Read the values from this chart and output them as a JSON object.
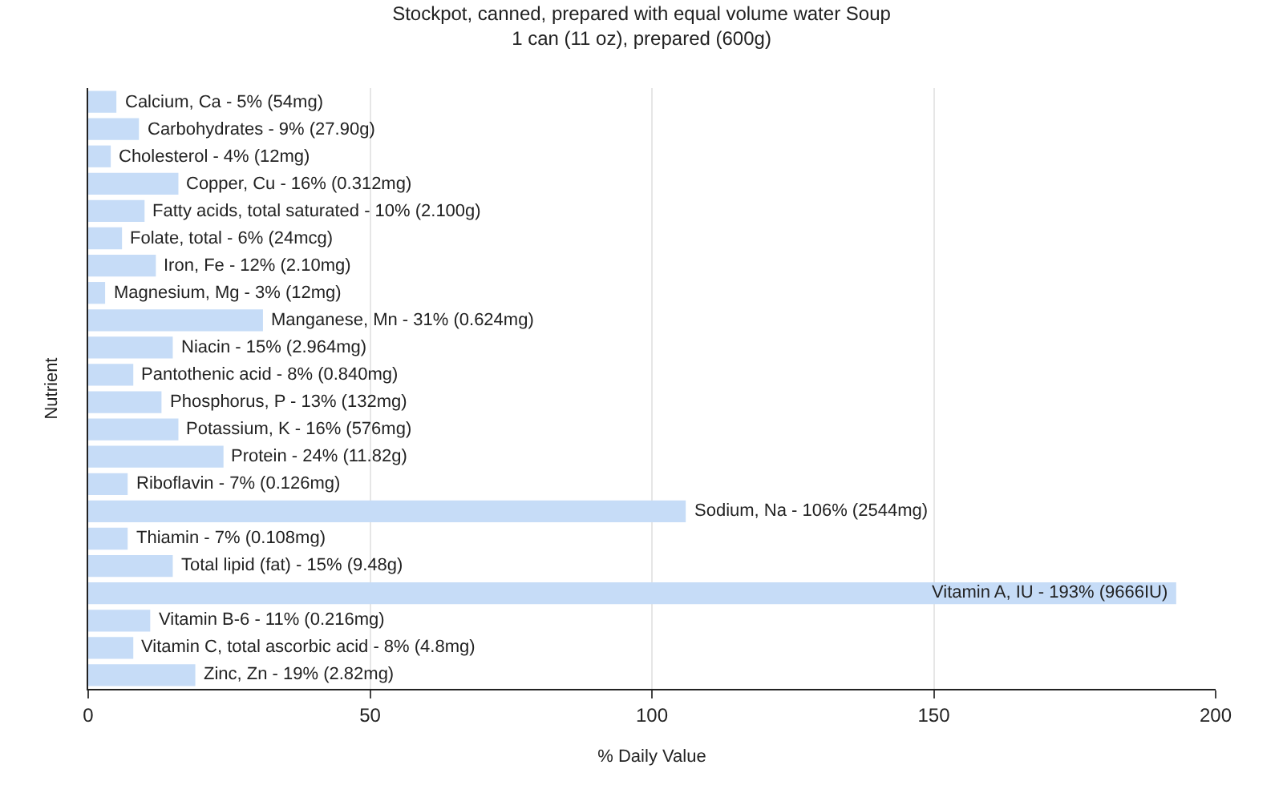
{
  "chart_data": {
    "type": "bar",
    "orientation": "horizontal",
    "title": "Stockpot, canned, prepared with equal volume water Soup",
    "subtitle": "1 can (11 oz), prepared (600g)",
    "xlabel": "% Daily Value",
    "ylabel": "Nutrient",
    "categories": [
      null,
      null,
      null,
      null,
      null,
      null,
      null,
      null,
      null,
      null,
      null,
      null,
      null,
      null,
      null,
      null,
      null,
      null,
      null,
      null,
      null,
      null
    ],
    "values": [
      5,
      9,
      4,
      16,
      10,
      6,
      12,
      3,
      31,
      15,
      8,
      13,
      16,
      24,
      7,
      106,
      7,
      15,
      193,
      11,
      8,
      19
    ],
    "annotations": [
      {
        "text": "Calcium, Ca - 5% (54mg)",
        "x": 5
      },
      {
        "text": "Carbohydrates - 9% (27.90g)",
        "x": 9
      },
      {
        "text": "Cholesterol - 4% (12mg)",
        "x": 4
      },
      {
        "text": "Copper, Cu - 16% (0.312mg)",
        "x": 16
      },
      {
        "text": "Fatty acids, total saturated - 10% (2.100g)",
        "x": 10
      },
      {
        "text": "Folate, total - 6% (24mcg)",
        "x": 6
      },
      {
        "text": "Iron, Fe - 12% (2.10mg)",
        "x": 12
      },
      {
        "text": "Magnesium, Mg - 3% (12mg)",
        "x": 3
      },
      {
        "text": "Manganese, Mn - 31% (0.624mg)",
        "x": 31
      },
      {
        "text": "Niacin - 15% (2.964mg)",
        "x": 15
      },
      {
        "text": "Pantothenic acid - 8% (0.840mg)",
        "x": 8
      },
      {
        "text": "Phosphorus, P - 13% (132mg)",
        "x": 13
      },
      {
        "text": "Potassium, K - 16% (576mg)",
        "x": 16
      },
      {
        "text": "Protein - 24% (11.82g)",
        "x": 24
      },
      {
        "text": "Riboflavin - 7% (0.126mg)",
        "x": 7
      },
      {
        "text": "Sodium, Na - 106% (2544mg)",
        "x": 106
      },
      {
        "text": "Thiamin - 7% (0.108mg)",
        "x": 7
      },
      {
        "text": "Total lipid (fat) - 15% (9.48g)",
        "x": 15
      },
      {
        "text": "Vitamin A, IU - 193% (9666IU)",
        "x": 193
      },
      {
        "text": "Vitamin B-6 - 11% (0.216mg)",
        "x": 11
      },
      {
        "text": "Vitamin C, total ascorbic acid - 8% (4.8mg)",
        "x": 8
      },
      {
        "text": "Zinc, Zn - 19% (2.82mg)",
        "x": 19
      }
    ],
    "color": "#c6dcf7",
    "xlim": [
      0,
      200
    ],
    "xticks": [
      0,
      50,
      100,
      150,
      200
    ],
    "grid": "x",
    "tick_labels": "x"
  }
}
